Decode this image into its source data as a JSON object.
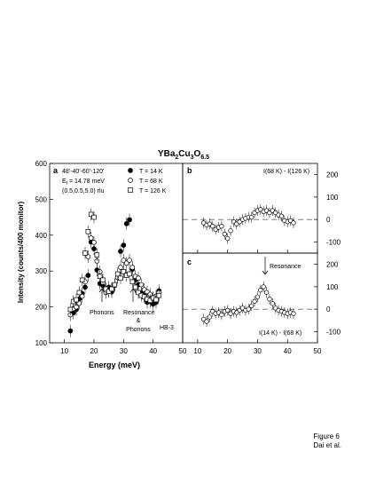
{
  "figure": {
    "title_base": "YBa",
    "title_sub1": "2",
    "title_mid": "Cu",
    "title_sub2": "3",
    "title_mid2": "O",
    "title_sub3": "6.5",
    "caption_line1": "Figure 6",
    "caption_line2": "Dai et al."
  },
  "chart_data": [
    {
      "panel": "a",
      "type": "scatter",
      "xlabel": "Energy (meV)",
      "ylabel": "Intensity (counts/400 monitor)",
      "xlim": [
        5,
        50
      ],
      "ylim": [
        100,
        600
      ],
      "x_ticks": [
        10,
        20,
        30,
        40,
        50
      ],
      "y_ticks": [
        100,
        200,
        300,
        400,
        500,
        600
      ],
      "info": [
        "48'-40'-60'-120'",
        "E",
        "f",
        " = 14.78 meV",
        "(0.5,0.5,5.0) rlu"
      ],
      "instrument": "HB-3",
      "annotations": {
        "phonons": "Phonons",
        "resonance": "Resonance",
        "amp": "&",
        "phonons2": "Phonons"
      },
      "legend_position": "top-right",
      "series": [
        {
          "name": "T = 14 K",
          "marker": "filled-circle",
          "points": [
            [
              12,
              133
            ],
            [
              13,
              183
            ],
            [
              14,
              193
            ],
            [
              15,
              222
            ],
            [
              16,
              237
            ],
            [
              17,
              255
            ],
            [
              18,
              288
            ],
            [
              19,
              381
            ],
            [
              20,
              362
            ],
            [
              21,
              303
            ],
            [
              22,
              265
            ],
            [
              23,
              260
            ],
            [
              24,
              250
            ],
            [
              25,
              255
            ],
            [
              26,
              242
            ],
            [
              27,
              262
            ],
            [
              28,
              282
            ],
            [
              29,
              355
            ],
            [
              30,
              372
            ],
            [
              31,
              432
            ],
            [
              32,
              443
            ],
            [
              33,
              305
            ],
            [
              34,
              275
            ],
            [
              35,
              262
            ],
            [
              36,
              238
            ],
            [
              37,
              232
            ],
            [
              38,
              213
            ],
            [
              39,
              215
            ],
            [
              40,
              208
            ],
            [
              41,
              213
            ],
            [
              42,
              245
            ]
          ]
        },
        {
          "name": "T = 68 K",
          "marker": "open-circle",
          "points": [
            [
              12,
              178
            ],
            [
              13,
              195
            ],
            [
              14,
              200
            ],
            [
              15,
              210
            ],
            [
              16,
              230
            ],
            [
              17,
              270
            ],
            [
              18,
              340
            ],
            [
              19,
              392
            ],
            [
              20,
              380
            ],
            [
              21,
              328
            ],
            [
              22,
              298
            ],
            [
              23,
              268
            ],
            [
              24,
              240
            ],
            [
              25,
              245
            ],
            [
              26,
              250
            ],
            [
              27,
              260
            ],
            [
              28,
              282
            ],
            [
              29,
              310
            ],
            [
              30,
              330
            ],
            [
              31,
              322
            ],
            [
              32,
              330
            ],
            [
              33,
              310
            ],
            [
              34,
              285
            ],
            [
              35,
              280
            ],
            [
              36,
              262
            ],
            [
              37,
              248
            ],
            [
              38,
              242
            ],
            [
              39,
              235
            ],
            [
              40,
              225
            ],
            [
              41,
              230
            ],
            [
              42,
              240
            ]
          ]
        },
        {
          "name": "T = 126 K",
          "marker": "open-square",
          "points": [
            [
              12,
              193
            ],
            [
              13,
              215
            ],
            [
              14,
              220
            ],
            [
              15,
              240
            ],
            [
              16,
              275
            ],
            [
              17,
              350
            ],
            [
              18,
              410
            ],
            [
              19,
              458
            ],
            [
              20,
              450
            ],
            [
              21,
              345
            ],
            [
              22,
              285
            ],
            [
              23,
              275
            ],
            [
              24,
              250
            ],
            [
              25,
              243
            ],
            [
              26,
              250
            ],
            [
              27,
              262
            ],
            [
              28,
              292
            ],
            [
              29,
              280
            ],
            [
              30,
              298
            ],
            [
              31,
              288
            ],
            [
              32,
              292
            ],
            [
              33,
              270
            ],
            [
              34,
              255
            ],
            [
              35,
              240
            ],
            [
              36,
              232
            ],
            [
              37,
              228
            ],
            [
              38,
              222
            ],
            [
              39,
              218
            ],
            [
              40,
              225
            ],
            [
              41,
              220
            ],
            [
              42,
              232
            ]
          ]
        }
      ]
    },
    {
      "panel": "b",
      "type": "scatter",
      "label": "I(68 K) - I(126 K)",
      "xlim": [
        5,
        50
      ],
      "ylim": [
        -150,
        250
      ],
      "y_ticks": [
        -100,
        0,
        100,
        200
      ],
      "x_ticks": [
        10,
        20,
        30,
        40,
        50
      ],
      "reference_line": 0,
      "points": [
        [
          12,
          -15
        ],
        [
          13,
          -25
        ],
        [
          14,
          -20
        ],
        [
          15,
          -30
        ],
        [
          16,
          -45
        ],
        [
          17,
          -35
        ],
        [
          18,
          -30
        ],
        [
          19,
          -65
        ],
        [
          20,
          -85
        ],
        [
          21,
          -50
        ],
        [
          22,
          -10
        ],
        [
          23,
          -20
        ],
        [
          24,
          -10
        ],
        [
          25,
          0
        ],
        [
          26,
          5
        ],
        [
          27,
          10
        ],
        [
          28,
          10
        ],
        [
          29,
          30
        ],
        [
          30,
          40
        ],
        [
          31,
          45
        ],
        [
          32,
          35
        ],
        [
          33,
          40
        ],
        [
          34,
          30
        ],
        [
          35,
          40
        ],
        [
          36,
          30
        ],
        [
          37,
          20
        ],
        [
          38,
          15
        ],
        [
          39,
          -5
        ],
        [
          40,
          -10
        ],
        [
          41,
          -5
        ],
        [
          42,
          -15
        ]
      ]
    },
    {
      "panel": "c",
      "type": "scatter",
      "label": "I(14 K) - I(68 K)",
      "annotation": "Resonance",
      "xlim": [
        5,
        50
      ],
      "ylim": [
        -150,
        250
      ],
      "y_ticks": [
        -100,
        0,
        100,
        200
      ],
      "x_ticks": [
        10,
        20,
        30,
        40,
        50
      ],
      "reference_line": 0,
      "points": [
        [
          12,
          -45
        ],
        [
          13,
          -55
        ],
        [
          14,
          -35
        ],
        [
          15,
          -10
        ],
        [
          16,
          -20
        ],
        [
          17,
          -15
        ],
        [
          18,
          -25
        ],
        [
          19,
          -10
        ],
        [
          20,
          -5
        ],
        [
          21,
          -20
        ],
        [
          22,
          -10
        ],
        [
          23,
          -15
        ],
        [
          24,
          -5
        ],
        [
          25,
          5
        ],
        [
          26,
          -5
        ],
        [
          27,
          0
        ],
        [
          28,
          15
        ],
        [
          29,
          35
        ],
        [
          30,
          55
        ],
        [
          31,
          85
        ],
        [
          32,
          100
        ],
        [
          33,
          75
        ],
        [
          34,
          45
        ],
        [
          35,
          25
        ],
        [
          36,
          5
        ],
        [
          37,
          -5
        ],
        [
          38,
          -10
        ],
        [
          39,
          -15
        ],
        [
          40,
          -20
        ],
        [
          41,
          -15
        ],
        [
          42,
          -20
        ]
      ]
    }
  ]
}
